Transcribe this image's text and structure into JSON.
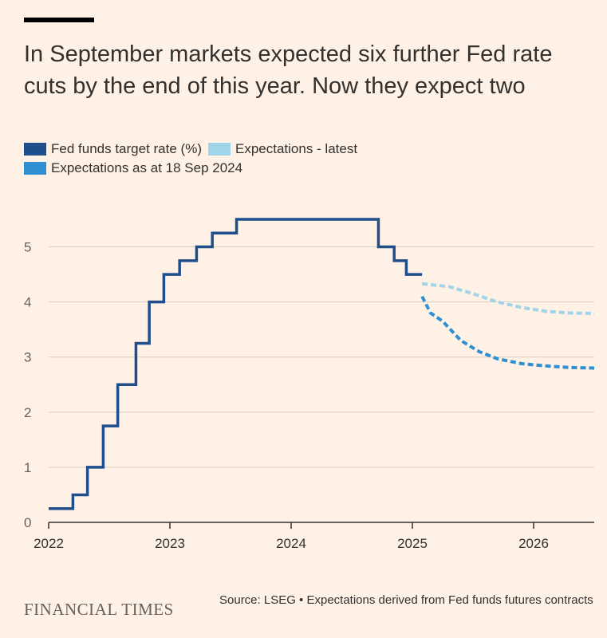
{
  "header": {
    "title": "In September markets expected six further Fed rate cuts by the end of this year. Now they expect two"
  },
  "legend": [
    {
      "label": "Fed funds target rate (%)",
      "color": "#1f4e8c"
    },
    {
      "label": "Expectations - latest",
      "color": "#9fd4ea"
    },
    {
      "label": "Expectations as at 18 Sep 2024",
      "color": "#2e8fd1"
    }
  ],
  "chart_data": {
    "type": "line",
    "xlim": [
      2022.0,
      2026.5
    ],
    "ylim": [
      0,
      5.5
    ],
    "x_ticks": [
      2022,
      2023,
      2024,
      2025,
      2026
    ],
    "x_tick_labels": [
      "2022",
      "2023",
      "2024",
      "2025",
      "2026"
    ],
    "y_ticks": [
      0,
      1,
      2,
      3,
      4,
      5
    ],
    "y_tick_labels": [
      "0",
      "1",
      "2",
      "3",
      "4",
      "5"
    ],
    "grid": true,
    "legend_position": "top-left",
    "series": [
      {
        "name": "Fed funds target rate (%)",
        "style": "step",
        "color": "#1f4e8c",
        "x": [
          2022.0,
          2022.2,
          2022.32,
          2022.45,
          2022.57,
          2022.72,
          2022.83,
          2022.95,
          2023.08,
          2023.22,
          2023.35,
          2023.55,
          2024.72,
          2024.85,
          2024.95,
          2025.08
        ],
        "y": [
          0.25,
          0.5,
          1.0,
          1.75,
          2.5,
          3.25,
          4.0,
          4.5,
          4.75,
          5.0,
          5.25,
          5.5,
          5.0,
          4.75,
          4.5,
          4.5
        ]
      },
      {
        "name": "Expectations - latest",
        "style": "dashed",
        "color": "#9fd4ea",
        "x": [
          2025.08,
          2025.3,
          2025.5,
          2025.7,
          2025.9,
          2026.1,
          2026.3,
          2026.5
        ],
        "y": [
          4.33,
          4.28,
          4.15,
          4.0,
          3.9,
          3.83,
          3.8,
          3.79
        ]
      },
      {
        "name": "Expectations as at 18 Sep 2024",
        "style": "dashed",
        "color": "#2e8fd1",
        "x": [
          2025.08,
          2025.15,
          2025.25,
          2025.4,
          2025.55,
          2025.7,
          2025.9,
          2026.1,
          2026.3,
          2026.5
        ],
        "y": [
          4.1,
          3.8,
          3.65,
          3.3,
          3.1,
          2.97,
          2.88,
          2.84,
          2.81,
          2.8
        ]
      }
    ]
  },
  "footer": {
    "brand": "FINANCIAL TIMES",
    "source": "Source: LSEG • Expectations derived from Fed funds futures contracts"
  }
}
